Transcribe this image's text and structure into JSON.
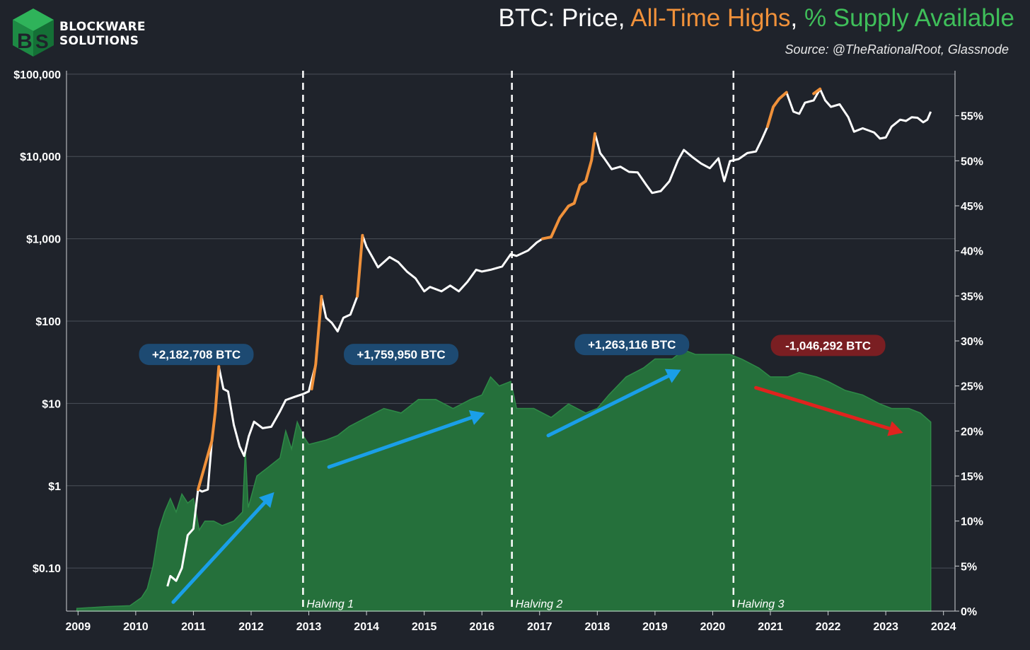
{
  "brand": {
    "line1": "BLOCKWARE",
    "line2": "SOLUTIONS"
  },
  "title": {
    "part1": "BTC: Price, ",
    "part2": "All-Time Highs",
    "sep": ", ",
    "part3": "% Supply Available"
  },
  "subtitle": "Source: @TheRationalRoot, Glassnode",
  "colors": {
    "background": "#1f232b",
    "price": "#ffffff",
    "ath": "#f0913a",
    "supply": "#25703b",
    "supply_edge": "#2e8a47",
    "arrow_up": "#1a9fe8",
    "arrow_down": "#e0231e",
    "badge_blue": "#1d4a72",
    "badge_red": "#7a1e22"
  },
  "chart_data": {
    "type": "line",
    "title": "BTC: Price, All-Time Highs, % Supply Available",
    "x_range": [
      2008.8,
      2024.2
    ],
    "x_ticks": [
      "2009",
      "2010",
      "2011",
      "2012",
      "2013",
      "2014",
      "2015",
      "2016",
      "2017",
      "2018",
      "2019",
      "2020",
      "2021",
      "2022",
      "2023",
      "2024"
    ],
    "y_left": {
      "scale": "log",
      "range": [
        0.03,
        110000
      ],
      "ticks": [
        100000,
        10000,
        1000,
        100,
        10,
        1,
        0.1
      ],
      "tick_labels": [
        "$100,000",
        "$10,000",
        "$1,000",
        "$100",
        "$10",
        "$1",
        "$0.10"
      ]
    },
    "y_right": {
      "scale": "linear",
      "range": [
        0,
        60
      ],
      "ticks": [
        0,
        5,
        10,
        15,
        20,
        25,
        30,
        35,
        40,
        45,
        50,
        55
      ],
      "tick_labels": [
        "0%",
        "5%",
        "10%",
        "15%",
        "20%",
        "25%",
        "30%",
        "35%",
        "40%",
        "45%",
        "50%",
        "55%"
      ]
    },
    "series": [
      {
        "name": "BTC Price",
        "axis": "left",
        "points": [
          [
            2010.55,
            0.06
          ],
          [
            2010.6,
            0.08
          ],
          [
            2010.7,
            0.07
          ],
          [
            2010.8,
            0.1
          ],
          [
            2010.9,
            0.25
          ],
          [
            2011.0,
            0.3
          ],
          [
            2011.08,
            0.9
          ],
          [
            2011.15,
            0.85
          ],
          [
            2011.25,
            0.9
          ],
          [
            2011.32,
            3.5
          ],
          [
            2011.38,
            8
          ],
          [
            2011.44,
            28
          ],
          [
            2011.52,
            15
          ],
          [
            2011.6,
            14
          ],
          [
            2011.7,
            5.5
          ],
          [
            2011.8,
            3
          ],
          [
            2011.88,
            2.3
          ],
          [
            2011.96,
            4
          ],
          [
            2012.05,
            6
          ],
          [
            2012.2,
            5
          ],
          [
            2012.35,
            5.2
          ],
          [
            2012.5,
            8
          ],
          [
            2012.6,
            11
          ],
          [
            2012.75,
            12
          ],
          [
            2012.9,
            13
          ],
          [
            2013.0,
            14
          ],
          [
            2013.12,
            30
          ],
          [
            2013.22,
            200
          ],
          [
            2013.3,
            110
          ],
          [
            2013.4,
            95
          ],
          [
            2013.5,
            75
          ],
          [
            2013.6,
            110
          ],
          [
            2013.72,
            120
          ],
          [
            2013.84,
            200
          ],
          [
            2013.93,
            1100
          ],
          [
            2014.0,
            800
          ],
          [
            2014.1,
            600
          ],
          [
            2014.2,
            450
          ],
          [
            2014.4,
            600
          ],
          [
            2014.55,
            520
          ],
          [
            2014.7,
            400
          ],
          [
            2014.85,
            330
          ],
          [
            2015.0,
            230
          ],
          [
            2015.1,
            260
          ],
          [
            2015.3,
            230
          ],
          [
            2015.45,
            270
          ],
          [
            2015.6,
            230
          ],
          [
            2015.75,
            300
          ],
          [
            2015.9,
            420
          ],
          [
            2016.0,
            400
          ],
          [
            2016.15,
            420
          ],
          [
            2016.35,
            460
          ],
          [
            2016.5,
            650
          ],
          [
            2016.6,
            620
          ],
          [
            2016.8,
            720
          ],
          [
            2016.95,
            900
          ],
          [
            2017.05,
            1000
          ],
          [
            2017.2,
            1050
          ],
          [
            2017.35,
            1800
          ],
          [
            2017.5,
            2500
          ],
          [
            2017.6,
            2700
          ],
          [
            2017.7,
            4500
          ],
          [
            2017.8,
            5000
          ],
          [
            2017.9,
            9000
          ],
          [
            2017.96,
            19000
          ],
          [
            2018.05,
            11000
          ],
          [
            2018.12,
            9500
          ],
          [
            2018.25,
            7000
          ],
          [
            2018.4,
            7500
          ],
          [
            2018.55,
            6500
          ],
          [
            2018.7,
            6400
          ],
          [
            2018.85,
            4500
          ],
          [
            2018.95,
            3600
          ],
          [
            2019.1,
            3800
          ],
          [
            2019.25,
            5000
          ],
          [
            2019.4,
            9000
          ],
          [
            2019.5,
            12000
          ],
          [
            2019.65,
            9800
          ],
          [
            2019.8,
            8200
          ],
          [
            2019.95,
            7200
          ],
          [
            2020.1,
            9500
          ],
          [
            2020.2,
            5000
          ],
          [
            2020.3,
            8800
          ],
          [
            2020.45,
            9300
          ],
          [
            2020.6,
            11000
          ],
          [
            2020.75,
            11500
          ],
          [
            2020.85,
            16000
          ],
          [
            2020.95,
            23000
          ],
          [
            2021.05,
            40000
          ],
          [
            2021.15,
            50000
          ],
          [
            2021.28,
            60000
          ],
          [
            2021.4,
            35000
          ],
          [
            2021.5,
            33000
          ],
          [
            2021.6,
            45000
          ],
          [
            2021.75,
            48000
          ],
          [
            2021.86,
            66000
          ],
          [
            2021.95,
            48000
          ],
          [
            2022.05,
            40000
          ],
          [
            2022.2,
            43000
          ],
          [
            2022.35,
            30000
          ],
          [
            2022.45,
            20000
          ],
          [
            2022.6,
            22000
          ],
          [
            2022.8,
            19500
          ],
          [
            2022.9,
            16500
          ],
          [
            2023.0,
            17000
          ],
          [
            2023.1,
            23000
          ],
          [
            2023.25,
            28000
          ],
          [
            2023.35,
            27000
          ],
          [
            2023.45,
            30000
          ],
          [
            2023.55,
            29500
          ],
          [
            2023.65,
            26000
          ],
          [
            2023.72,
            28000
          ],
          [
            2023.78,
            35000
          ]
        ]
      },
      {
        "name": "All-Time Highs",
        "axis": "left",
        "segments": [
          [
            [
              2011.08,
              0.9
            ],
            [
              2011.32,
              3.5
            ],
            [
              2011.38,
              8
            ],
            [
              2011.44,
              28
            ]
          ],
          [
            [
              2013.05,
              15
            ],
            [
              2013.12,
              30
            ],
            [
              2013.22,
              200
            ]
          ],
          [
            [
              2013.84,
              200
            ],
            [
              2013.93,
              1100
            ]
          ],
          [
            [
              2017.05,
              1000
            ],
            [
              2017.2,
              1050
            ],
            [
              2017.35,
              1800
            ],
            [
              2017.5,
              2500
            ],
            [
              2017.6,
              2700
            ],
            [
              2017.7,
              4500
            ],
            [
              2017.8,
              5000
            ],
            [
              2017.9,
              9000
            ],
            [
              2017.96,
              19000
            ]
          ],
          [
            [
              2020.95,
              23000
            ],
            [
              2021.05,
              40000
            ],
            [
              2021.15,
              50000
            ],
            [
              2021.28,
              60000
            ]
          ],
          [
            [
              2021.75,
              58000
            ],
            [
              2021.86,
              66000
            ]
          ]
        ]
      },
      {
        "name": "% Supply Available",
        "axis": "right",
        "points": [
          [
            2008.98,
            0.3
          ],
          [
            2009.5,
            0.5
          ],
          [
            2009.9,
            0.6
          ],
          [
            2010.1,
            1.5
          ],
          [
            2010.2,
            2.5
          ],
          [
            2010.3,
            5
          ],
          [
            2010.4,
            9
          ],
          [
            2010.5,
            11
          ],
          [
            2010.6,
            12.5
          ],
          [
            2010.7,
            11
          ],
          [
            2010.8,
            13
          ],
          [
            2010.9,
            12
          ],
          [
            2011.0,
            12.5
          ],
          [
            2011.1,
            9
          ],
          [
            2011.2,
            10
          ],
          [
            2011.35,
            10
          ],
          [
            2011.5,
            9.5
          ],
          [
            2011.7,
            10
          ],
          [
            2011.85,
            11
          ],
          [
            2011.9,
            18
          ],
          [
            2011.95,
            11.5
          ],
          [
            2012.1,
            15
          ],
          [
            2012.3,
            16
          ],
          [
            2012.5,
            17
          ],
          [
            2012.6,
            20
          ],
          [
            2012.7,
            18
          ],
          [
            2012.8,
            21
          ],
          [
            2012.9,
            19.5
          ],
          [
            2013.0,
            18.5
          ],
          [
            2013.3,
            19
          ],
          [
            2013.5,
            19.5
          ],
          [
            2013.7,
            20.5
          ],
          [
            2014.0,
            21.5
          ],
          [
            2014.3,
            22.5
          ],
          [
            2014.6,
            22
          ],
          [
            2014.9,
            23.5
          ],
          [
            2015.2,
            23.5
          ],
          [
            2015.5,
            22.5
          ],
          [
            2015.8,
            23.5
          ],
          [
            2016.0,
            24
          ],
          [
            2016.15,
            26
          ],
          [
            2016.3,
            25
          ],
          [
            2016.5,
            25.5
          ],
          [
            2016.6,
            22.5
          ],
          [
            2016.9,
            22.5
          ],
          [
            2017.2,
            21.5
          ],
          [
            2017.5,
            23
          ],
          [
            2017.8,
            22
          ],
          [
            2018.0,
            22.5
          ],
          [
            2018.2,
            24
          ],
          [
            2018.5,
            26
          ],
          [
            2018.8,
            27
          ],
          [
            2019.0,
            28
          ],
          [
            2019.3,
            28
          ],
          [
            2019.5,
            29
          ],
          [
            2019.7,
            28.5
          ],
          [
            2020.0,
            28.5
          ],
          [
            2020.3,
            28.5
          ],
          [
            2020.5,
            28
          ],
          [
            2020.8,
            27
          ],
          [
            2021.0,
            26
          ],
          [
            2021.3,
            26
          ],
          [
            2021.5,
            26.5
          ],
          [
            2021.8,
            26
          ],
          [
            2022.0,
            25.5
          ],
          [
            2022.3,
            24.5
          ],
          [
            2022.6,
            24
          ],
          [
            2022.9,
            23
          ],
          [
            2023.1,
            22.5
          ],
          [
            2023.4,
            22.5
          ],
          [
            2023.6,
            22
          ],
          [
            2023.78,
            21
          ]
        ]
      }
    ],
    "halvings": [
      {
        "x": 2012.9,
        "label": "Halving 1"
      },
      {
        "x": 2016.52,
        "label": "Halving 2"
      },
      {
        "x": 2020.36,
        "label": "Halving 3"
      }
    ],
    "annotations": [
      {
        "text": "+2,182,708 BTC",
        "x": 2011.05,
        "y_pct": 28.5,
        "style": "blue"
      },
      {
        "text": "+1,759,950 BTC",
        "x": 2014.6,
        "y_pct": 28.5,
        "style": "blue"
      },
      {
        "text": "+1,263,116 BTC",
        "x": 2018.6,
        "y_pct": 29.6,
        "style": "blue"
      },
      {
        "text": "-1,046,292 BTC",
        "x": 2022.0,
        "y_pct": 29.5,
        "style": "red"
      }
    ],
    "arrows": [
      {
        "from": [
          2010.65,
          1
        ],
        "to": [
          2012.4,
          13.2
        ],
        "style": "up"
      },
      {
        "from": [
          2013.35,
          16
        ],
        "to": [
          2016.05,
          22
        ],
        "style": "up"
      },
      {
        "from": [
          2017.15,
          19.5
        ],
        "to": [
          2019.45,
          26.8
        ],
        "style": "up"
      },
      {
        "from": [
          2020.75,
          24.8
        ],
        "to": [
          2023.3,
          19.8
        ],
        "style": "down"
      }
    ]
  }
}
